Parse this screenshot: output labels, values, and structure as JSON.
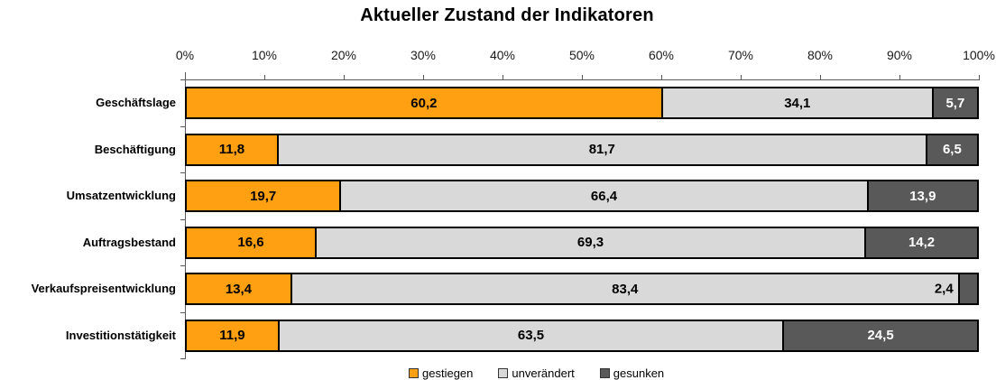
{
  "title": "Aktueller Zustand der Indikatoren",
  "chart_data": {
    "type": "bar",
    "stacked": true,
    "orientation": "horizontal",
    "title": "Aktueller Zustand der Indikatoren",
    "categories": [
      "Geschäftslage",
      "Beschäftigung",
      "Umsatzentwicklung",
      "Auftragsbestand",
      "Verkaufspreisentwicklung",
      "Investitionstätigkeit"
    ],
    "series": [
      {
        "name": "gestiegen",
        "color": "#FFA013",
        "label_color": "#000000",
        "values": [
          60.2,
          11.8,
          19.7,
          16.6,
          13.4,
          11.9
        ],
        "labels": [
          "60,2",
          "11,8",
          "19,7",
          "16,6",
          "13,4",
          "11,9"
        ]
      },
      {
        "name": "unverändert",
        "color": "#D9D9D9",
        "label_color": "#000000",
        "values": [
          34.1,
          81.7,
          66.4,
          69.3,
          83.4,
          63.5
        ],
        "labels": [
          "34,1",
          "81,7",
          "66,4",
          "69,3",
          "83,4",
          "63,5"
        ]
      },
      {
        "name": "gesunken",
        "color": "#595959",
        "label_color": "#FFFFFF",
        "values": [
          5.7,
          6.5,
          13.9,
          14.2,
          2.4,
          24.5
        ],
        "labels": [
          "5,7",
          "6,5",
          "13,9",
          "14,2",
          "2,4",
          "24,5"
        ]
      }
    ],
    "x_axis": {
      "min": 0,
      "max": 100,
      "tick_step": 10,
      "tick_labels": [
        "0%",
        "10%",
        "20%",
        "30%",
        "40%",
        "50%",
        "60%",
        "70%",
        "80%",
        "90%",
        "100%"
      ]
    },
    "legend": {
      "position": "bottom",
      "entries": [
        {
          "label": "gestiegen",
          "color": "#FFA013"
        },
        {
          "label": "unverändert",
          "color": "#D9D9D9"
        },
        {
          "label": "gesunken",
          "color": "#595959"
        }
      ]
    },
    "grid": false
  }
}
